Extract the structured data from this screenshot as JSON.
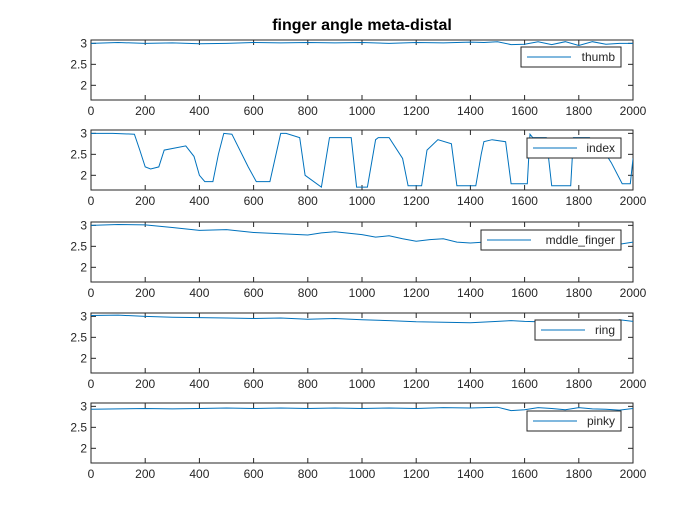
{
  "chart_data": {
    "type": "line",
    "title": "finger angle meta-distal",
    "line_color": "#0072BD",
    "axis_color": "#262626",
    "x_ticks": [
      0,
      200,
      400,
      600,
      800,
      1000,
      1200,
      1400,
      1600,
      1800,
      2000
    ],
    "y_ticks": [
      2,
      2.5,
      3
    ],
    "xlim": [
      0,
      2000
    ],
    "legend_position": "top-right",
    "subplots": [
      {
        "name": "thumb",
        "ylim": [
          1.65,
          3.08
        ],
        "x": [
          0,
          100,
          200,
          300,
          400,
          500,
          600,
          700,
          800,
          900,
          1000,
          1100,
          1200,
          1300,
          1400,
          1450,
          1500,
          1550,
          1600,
          1650,
          1700,
          1750,
          1800,
          1850,
          1900,
          1950,
          2000
        ],
        "y": [
          3.0,
          3.02,
          3.0,
          3.01,
          2.99,
          3.0,
          3.02,
          3.01,
          3.02,
          3.01,
          3.02,
          3.0,
          3.02,
          3.01,
          3.03,
          3.02,
          3.04,
          2.97,
          2.98,
          3.04,
          2.97,
          3.04,
          2.95,
          3.04,
          2.98,
          3.0,
          3.0
        ]
      },
      {
        "name": "index",
        "ylim": [
          1.65,
          3.08
        ],
        "x": [
          0,
          80,
          160,
          180,
          200,
          220,
          250,
          270,
          350,
          380,
          400,
          420,
          450,
          470,
          490,
          520,
          580,
          610,
          660,
          700,
          720,
          770,
          790,
          850,
          880,
          960,
          980,
          1020,
          1050,
          1060,
          1100,
          1150,
          1170,
          1220,
          1240,
          1280,
          1330,
          1350,
          1420,
          1440,
          1450,
          1480,
          1530,
          1550,
          1610,
          1620,
          1630,
          1680,
          1700,
          1770,
          1780,
          1840,
          1880,
          1920,
          1960,
          1990,
          2000
        ],
        "y": [
          3.0,
          3.0,
          2.98,
          2.6,
          2.2,
          2.15,
          2.2,
          2.6,
          2.7,
          2.45,
          2.0,
          1.85,
          1.85,
          2.5,
          3.0,
          2.98,
          2.2,
          1.85,
          1.85,
          3.0,
          3.0,
          2.9,
          2.0,
          1.72,
          2.9,
          2.9,
          1.72,
          1.72,
          2.85,
          2.9,
          2.9,
          2.4,
          1.75,
          1.75,
          2.6,
          2.85,
          2.75,
          1.75,
          1.75,
          2.5,
          2.8,
          2.85,
          2.8,
          1.8,
          1.8,
          2.98,
          2.9,
          2.9,
          1.75,
          1.75,
          2.9,
          2.9,
          2.7,
          2.3,
          1.8,
          1.8,
          2.4
        ]
      },
      {
        "name": "mddle_finger",
        "ylim": [
          1.65,
          3.08
        ],
        "x": [
          0,
          100,
          200,
          300,
          400,
          500,
          600,
          700,
          800,
          850,
          900,
          1000,
          1050,
          1100,
          1150,
          1200,
          1250,
          1300,
          1350,
          1400,
          1450,
          1500,
          1550,
          1600,
          1650,
          1700,
          1750,
          1800,
          1850,
          1900,
          1950,
          2000
        ],
        "y": [
          3.0,
          3.02,
          3.01,
          2.95,
          2.88,
          2.9,
          2.83,
          2.8,
          2.77,
          2.82,
          2.85,
          2.78,
          2.72,
          2.75,
          2.68,
          2.62,
          2.66,
          2.68,
          2.6,
          2.58,
          2.6,
          2.63,
          2.68,
          2.6,
          2.7,
          2.66,
          2.68,
          2.62,
          2.68,
          2.65,
          2.55,
          2.6
        ]
      },
      {
        "name": "ring",
        "ylim": [
          1.65,
          3.08
        ],
        "x": [
          0,
          100,
          200,
          300,
          400,
          500,
          600,
          700,
          800,
          900,
          1000,
          1100,
          1200,
          1300,
          1400,
          1500,
          1550,
          1600,
          1650,
          1700,
          1750,
          1800,
          1850,
          1900,
          1950,
          2000
        ],
        "y": [
          3.02,
          3.03,
          3.0,
          2.98,
          2.97,
          2.96,
          2.95,
          2.96,
          2.93,
          2.95,
          2.92,
          2.9,
          2.87,
          2.86,
          2.85,
          2.88,
          2.9,
          2.88,
          2.87,
          2.88,
          2.88,
          2.9,
          2.88,
          2.85,
          2.92,
          2.88
        ]
      },
      {
        "name": "pinky",
        "ylim": [
          1.65,
          3.08
        ],
        "x": [
          0,
          100,
          200,
          300,
          400,
          500,
          600,
          700,
          800,
          900,
          1000,
          1100,
          1200,
          1300,
          1400,
          1500,
          1550,
          1600,
          1650,
          1700,
          1750,
          1800,
          1850,
          1900,
          1950,
          2000
        ],
        "y": [
          2.93,
          2.94,
          2.95,
          2.94,
          2.95,
          2.96,
          2.95,
          2.96,
          2.95,
          2.96,
          2.95,
          2.96,
          2.95,
          2.97,
          2.96,
          2.98,
          2.9,
          2.92,
          2.97,
          2.95,
          2.92,
          2.97,
          2.94,
          2.93,
          2.91,
          2.95
        ]
      }
    ]
  }
}
